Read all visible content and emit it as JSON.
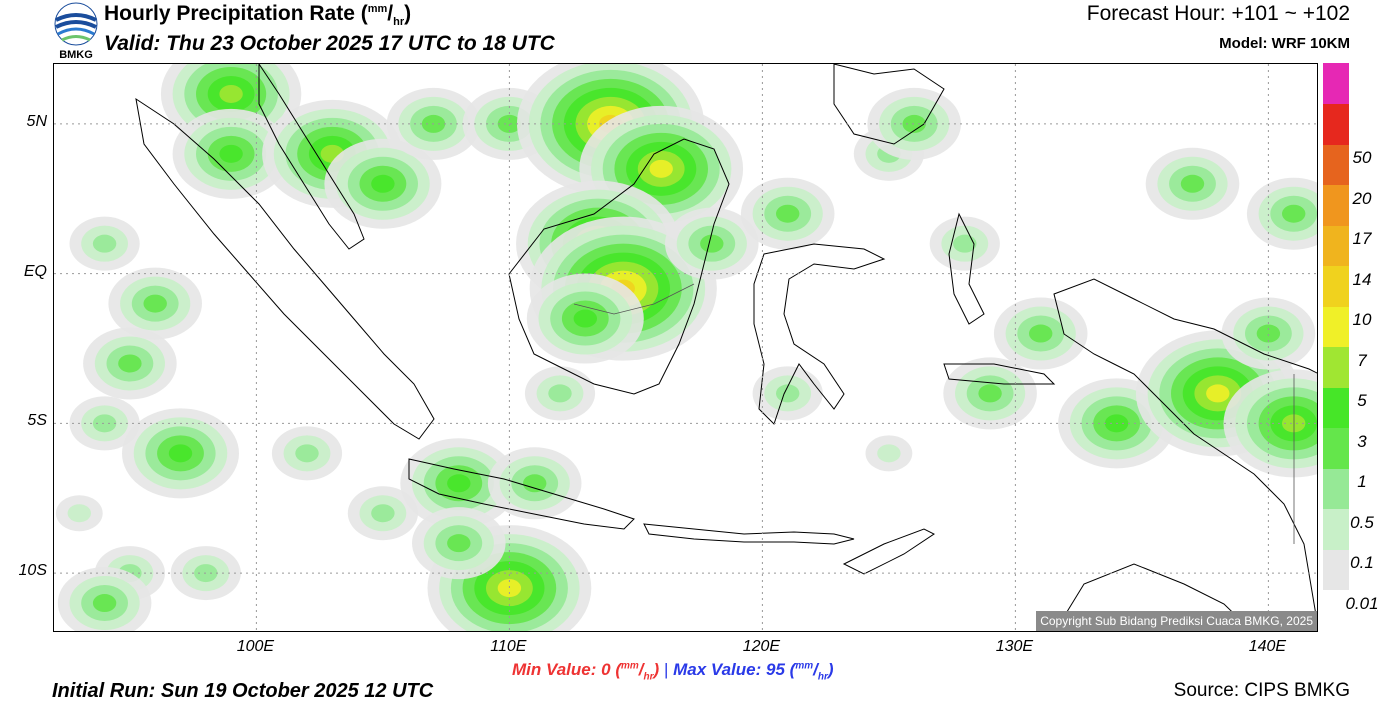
{
  "header": {
    "title_main": "Hourly Precipitation Rate (",
    "title_unit_sup": "mm",
    "title_unit_sep": "/",
    "title_unit_sub": "hr",
    "title_close": ")",
    "valid": "Valid: Thu 23 October 2025 17 UTC to 18 UTC",
    "forecast_hour": "Forecast Hour: +101 ~ +102",
    "model": "Model: WRF 10KM",
    "logo_text": "BMKG"
  },
  "map": {
    "lon_range": [
      92,
      142
    ],
    "lat_range": [
      -12,
      7
    ],
    "lat_labels": [
      {
        "value": 5,
        "text": "5N"
      },
      {
        "value": 0,
        "text": "EQ"
      },
      {
        "value": -5,
        "text": "5S"
      },
      {
        "value": -10,
        "text": "10S"
      }
    ],
    "lon_labels": [
      {
        "value": 100,
        "text": "100E"
      },
      {
        "value": 110,
        "text": "110E"
      },
      {
        "value": 120,
        "text": "120E"
      },
      {
        "value": 130,
        "text": "130E"
      },
      {
        "value": 140,
        "text": "140E"
      }
    ],
    "copyright": "Copyright Sub Bidang Prediksi Cuaca BMKG, 2025"
  },
  "stats": {
    "min_label": "Min Value:",
    "min_value": "0",
    "max_label": "Max Value:",
    "max_value": "95",
    "unit_sup": "mm",
    "unit_sub": "hr",
    "separator": "|"
  },
  "footer": {
    "initial_run": "Initial Run: Sun 19 October 2025 12 UTC",
    "source": "Source: CIPS BMKG"
  },
  "legend": [
    {
      "label": "0.01",
      "color": "#e6e6e6"
    },
    {
      "label": "0.1",
      "color": "#c8f0c8"
    },
    {
      "label": "0.5",
      "color": "#96e996"
    },
    {
      "label": "1",
      "color": "#64e64b"
    },
    {
      "label": "3",
      "color": "#46e628"
    },
    {
      "label": "5",
      "color": "#a0e632"
    },
    {
      "label": "7",
      "color": "#f0f028"
    },
    {
      "label": "10",
      "color": "#f0d21e"
    },
    {
      "label": "14",
      "color": "#f0b41e"
    },
    {
      "label": "17",
      "color": "#f0961e"
    },
    {
      "label": "20",
      "color": "#e6641e"
    },
    {
      "label": "50",
      "color": "#e6281e"
    },
    {
      "label": "",
      "color": "#e628b4"
    }
  ],
  "rain_cells": [
    {
      "lon": 94,
      "lat": -5,
      "level": 2
    },
    {
      "lon": 95,
      "lat": -3,
      "level": 3
    },
    {
      "lon": 94,
      "lat": 1,
      "level": 2
    },
    {
      "lon": 96,
      "lat": -1,
      "level": 3
    },
    {
      "lon": 93,
      "lat": -8,
      "level": 1
    },
    {
      "lon": 95,
      "lat": -10,
      "level": 2
    },
    {
      "lon": 94,
      "lat": -11,
      "level": 3
    },
    {
      "lon": 98,
      "lat": -10,
      "level": 2
    },
    {
      "lon": 99,
      "lat": 6,
      "level": 5
    },
    {
      "lon": 99,
      "lat": 4,
      "level": 4
    },
    {
      "lon": 103,
      "lat": 4,
      "level": 5
    },
    {
      "lon": 105,
      "lat": 3,
      "level": 4
    },
    {
      "lon": 107,
      "lat": 5,
      "level": 3
    },
    {
      "lon": 110,
      "lat": 5,
      "level": 3
    },
    {
      "lon": 114,
      "lat": 5,
      "level": 7
    },
    {
      "lon": 116,
      "lat": 3.5,
      "level": 6
    },
    {
      "lon": 113.5,
      "lat": 1,
      "level": 6
    },
    {
      "lon": 114.5,
      "lat": -0.5,
      "level": 7
    },
    {
      "lon": 113,
      "lat": -1.5,
      "level": 4
    },
    {
      "lon": 118,
      "lat": 1,
      "level": 3
    },
    {
      "lon": 121,
      "lat": 2,
      "level": 3
    },
    {
      "lon": 125,
      "lat": 4,
      "level": 2
    },
    {
      "lon": 128,
      "lat": 1,
      "level": 2
    },
    {
      "lon": 131,
      "lat": -2,
      "level": 3
    },
    {
      "lon": 129,
      "lat": -4,
      "level": 3
    },
    {
      "lon": 134,
      "lat": -5,
      "level": 4
    },
    {
      "lon": 138,
      "lat": -4,
      "level": 6
    },
    {
      "lon": 141,
      "lat": -5,
      "level": 5
    },
    {
      "lon": 137,
      "lat": 3,
      "level": 3
    },
    {
      "lon": 141,
      "lat": 2,
      "level": 3
    },
    {
      "lon": 140,
      "lat": -2,
      "level": 3
    },
    {
      "lon": 108,
      "lat": -7,
      "level": 4
    },
    {
      "lon": 111,
      "lat": -7,
      "level": 3
    },
    {
      "lon": 110,
      "lat": -10.5,
      "level": 6
    },
    {
      "lon": 108,
      "lat": -9,
      "level": 3
    },
    {
      "lon": 105,
      "lat": -8,
      "level": 2
    },
    {
      "lon": 102,
      "lat": -6,
      "level": 2
    },
    {
      "lon": 97,
      "lat": -6,
      "level": 4
    },
    {
      "lon": 112,
      "lat": -4,
      "level": 2
    },
    {
      "lon": 121,
      "lat": -4,
      "level": 2
    },
    {
      "lon": 125,
      "lat": -6,
      "level": 1
    },
    {
      "lon": 126,
      "lat": 5,
      "level": 3
    }
  ]
}
